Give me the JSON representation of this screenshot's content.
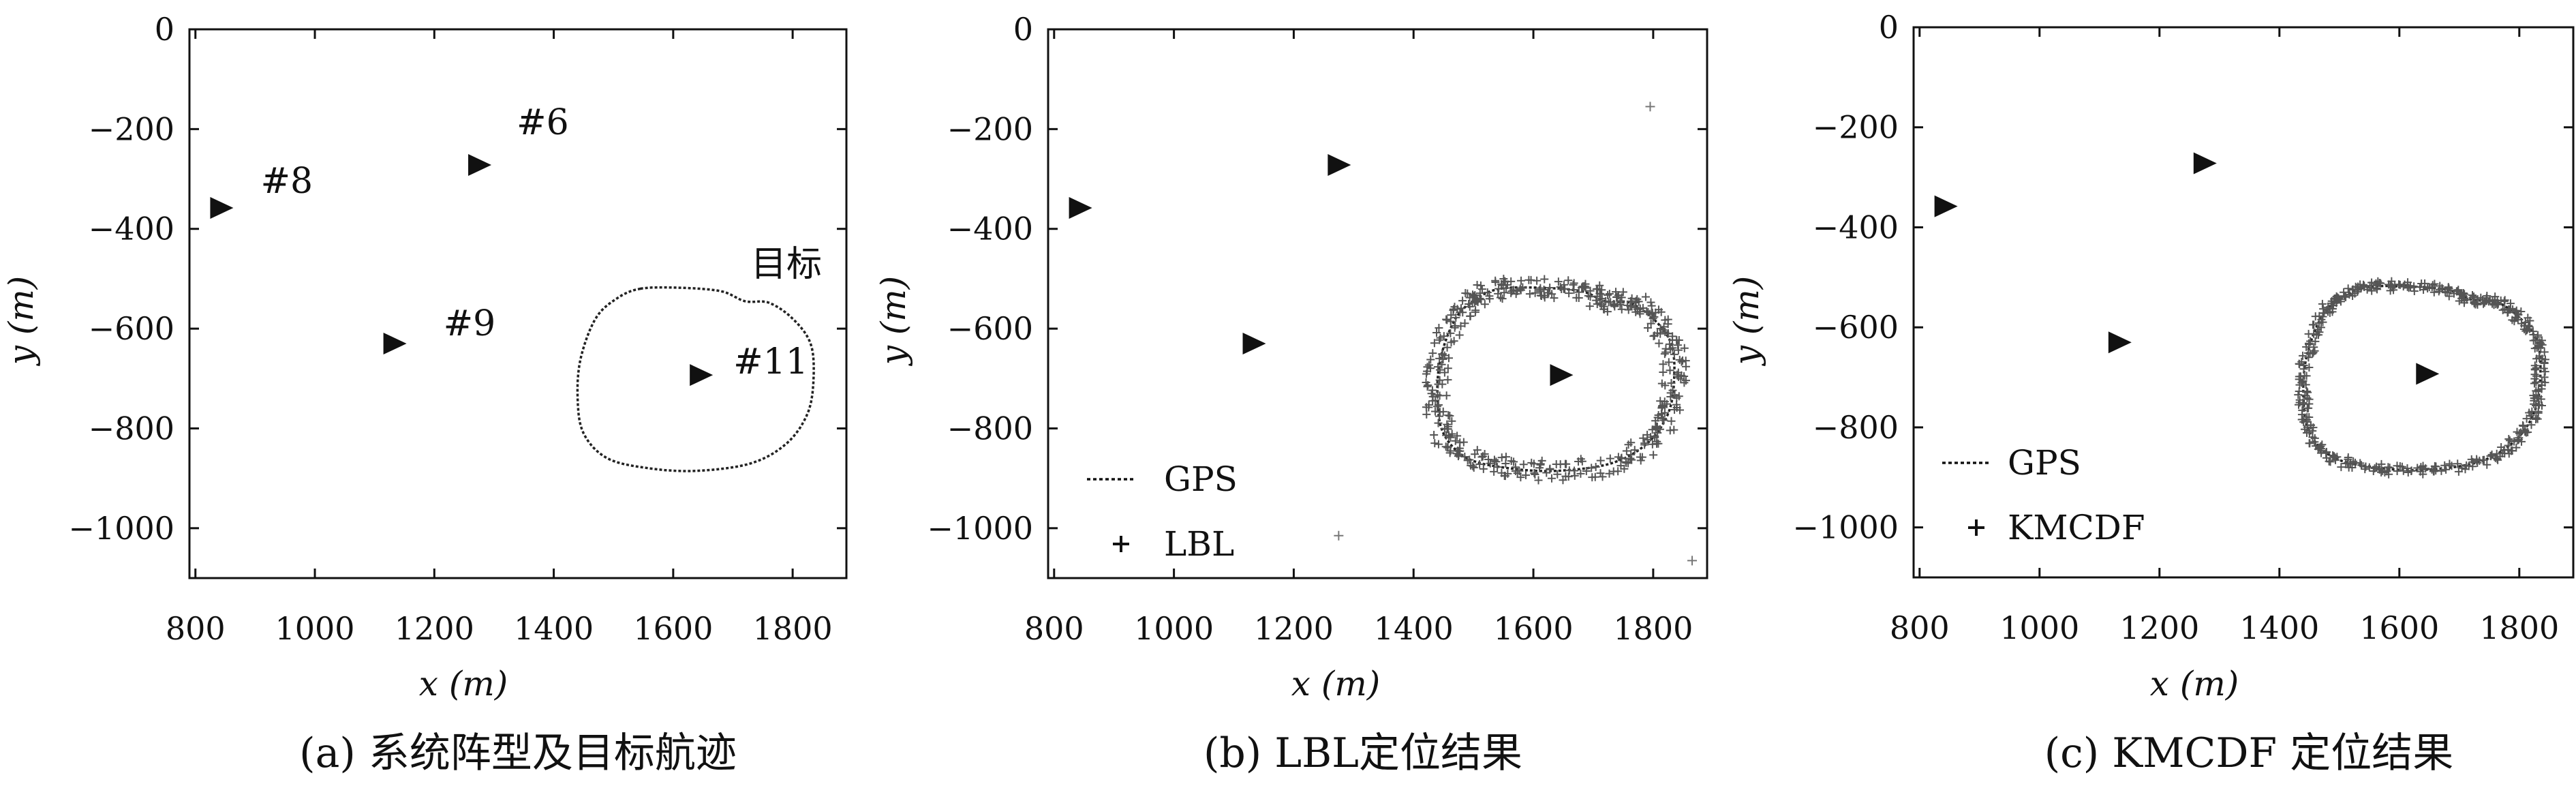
{
  "chart_data": [
    {
      "type": "scatter",
      "caption": "(a) 系统阵型及目标航迹",
      "xlabel": "x (m)",
      "ylabel": "y (m)",
      "xlim": [
        790,
        1890
      ],
      "ylim": [
        -1100,
        0
      ],
      "xticks": [
        800,
        1000,
        1200,
        1400,
        1600,
        1800
      ],
      "yticks": [
        0,
        -200,
        -400,
        -600,
        -800,
        -1000
      ],
      "legend": [],
      "grid": false,
      "nodes": [
        {
          "label": "#8",
          "x": 843,
          "y": -358
        },
        {
          "label": "#6",
          "x": 1275,
          "y": -272
        },
        {
          "label": "#9",
          "x": 1133,
          "y": -630
        },
        {
          "label": "#11",
          "x": 1646,
          "y": -693
        }
      ],
      "annotations": [
        {
          "text": "目标",
          "x": 1744,
          "y": -470
        }
      ],
      "series": [
        {
          "name": "",
          "style": "dotted-path"
        }
      ]
    },
    {
      "type": "scatter",
      "caption": "(b) LBL定位结果",
      "xlabel": "x (m)",
      "ylabel": "y (m)",
      "xlim": [
        790,
        1890
      ],
      "ylim": [
        -1100,
        0
      ],
      "xticks": [
        800,
        1000,
        1200,
        1400,
        1600,
        1800
      ],
      "yticks": [
        0,
        -200,
        -400,
        -600,
        -800,
        -1000
      ],
      "legend": [
        "GPS",
        "LBL"
      ],
      "legend_position": "bottom-left",
      "grid": false,
      "nodes": [
        {
          "x": 843,
          "y": -358
        },
        {
          "x": 1275,
          "y": -272
        },
        {
          "x": 1133,
          "y": -630
        },
        {
          "x": 1646,
          "y": -693
        }
      ],
      "outliers": [
        {
          "x": 1795,
          "y": -155
        },
        {
          "x": 1275,
          "y": -1015
        },
        {
          "x": 1865,
          "y": -1065
        }
      ],
      "series": [
        {
          "name": "GPS",
          "style": "dotted-path"
        },
        {
          "name": "LBL",
          "style": "plus-markers",
          "jitter_m": 20
        }
      ]
    },
    {
      "type": "scatter",
      "caption": "(c) KMCDF 定位结果",
      "xlabel": "x (m)",
      "ylabel": "y (m)",
      "xlim": [
        790,
        1890
      ],
      "ylim": [
        -1100,
        0
      ],
      "xticks": [
        800,
        1000,
        1200,
        1400,
        1600,
        1800
      ],
      "yticks": [
        0,
        -200,
        -400,
        -600,
        -800,
        -1000
      ],
      "legend": [
        "GPS",
        "KMCDF"
      ],
      "legend_position": "bottom-left",
      "grid": false,
      "nodes": [
        {
          "x": 843,
          "y": -358
        },
        {
          "x": 1275,
          "y": -272
        },
        {
          "x": 1133,
          "y": -630
        },
        {
          "x": 1646,
          "y": -693
        }
      ],
      "outliers": [],
      "series": [
        {
          "name": "GPS",
          "style": "dotted-path"
        },
        {
          "name": "KMCDF",
          "style": "plus-markers",
          "jitter_m": 10
        }
      ]
    }
  ],
  "trajectory": {
    "description_points": [
      [
        1545,
        -520
      ],
      [
        1610,
        -518
      ],
      [
        1680,
        -525
      ],
      [
        1720,
        -545
      ],
      [
        1760,
        -548
      ],
      [
        1800,
        -580
      ],
      [
        1830,
        -630
      ],
      [
        1835,
        -700
      ],
      [
        1825,
        -770
      ],
      [
        1790,
        -830
      ],
      [
        1730,
        -870
      ],
      [
        1640,
        -885
      ],
      [
        1560,
        -880
      ],
      [
        1490,
        -860
      ],
      [
        1450,
        -810
      ],
      [
        1440,
        -740
      ],
      [
        1445,
        -660
      ],
      [
        1470,
        -580
      ],
      [
        1505,
        -540
      ],
      [
        1545,
        -520
      ]
    ]
  }
}
